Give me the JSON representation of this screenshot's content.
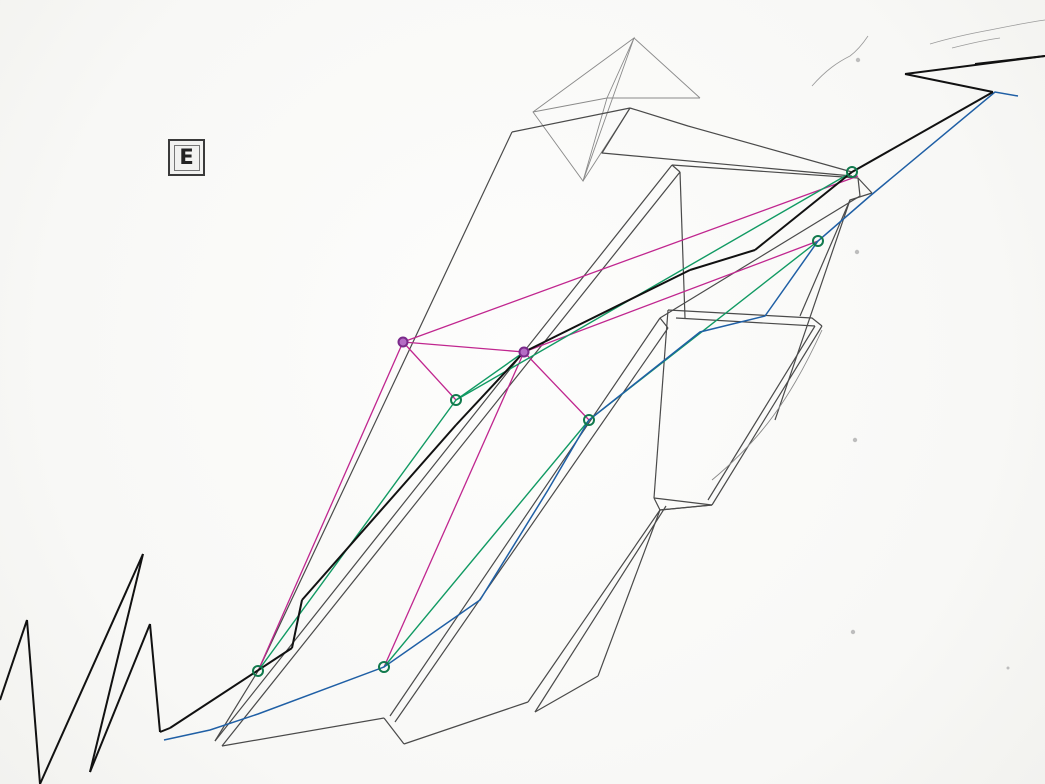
{
  "figure": {
    "label": "E"
  },
  "colors": {
    "structure": "#4a4a4a",
    "path_black": "#111111",
    "path_magenta": "#c0268f",
    "path_green": "#119a63",
    "path_blue": "#1f5fa5",
    "node_purple": "#b56cc4"
  }
}
